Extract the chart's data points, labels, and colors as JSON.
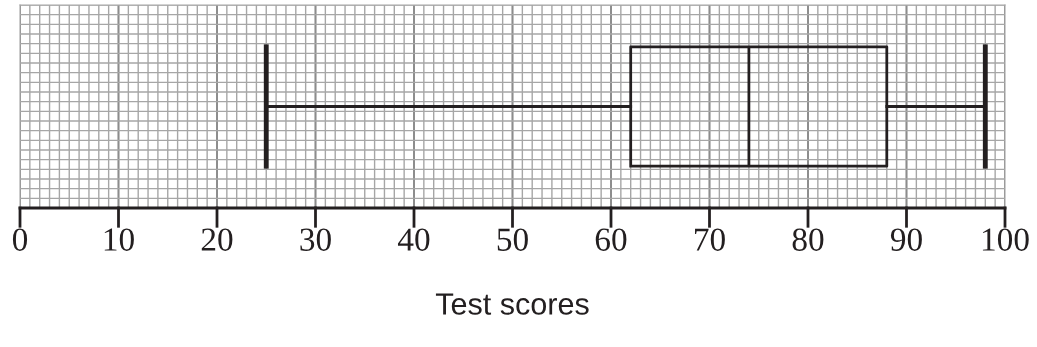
{
  "chart_data": {
    "type": "box",
    "orientation": "horizontal",
    "xlabel": "Test scores",
    "categories": [
      null
    ],
    "boxes": [
      {
        "low": 25,
        "q1": 62,
        "median": 74,
        "q3": 88,
        "high": 98
      }
    ],
    "color": "#231f20",
    "xlim": [
      0,
      100
    ],
    "xticks": [
      0,
      10,
      20,
      30,
      40,
      50,
      60,
      70,
      80,
      90,
      100
    ],
    "grid": true,
    "tick_labels": "x"
  }
}
